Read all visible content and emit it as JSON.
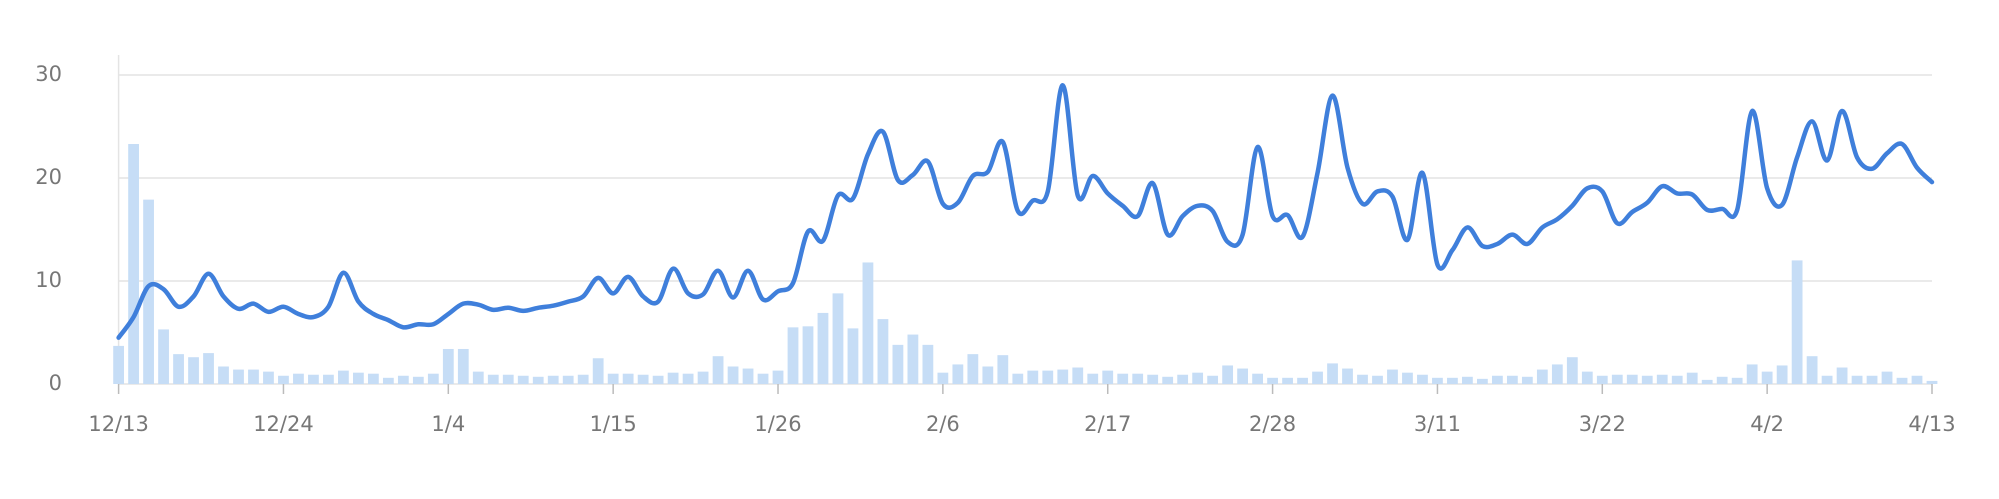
{
  "chart_data": {
    "type": "combo",
    "categories": [
      "12/13",
      null,
      null,
      null,
      null,
      null,
      null,
      null,
      null,
      null,
      null,
      "12/24",
      null,
      null,
      null,
      null,
      null,
      null,
      null,
      null,
      null,
      null,
      "1/4",
      null,
      null,
      null,
      null,
      null,
      null,
      null,
      null,
      null,
      null,
      "1/15",
      null,
      null,
      null,
      null,
      null,
      null,
      null,
      null,
      null,
      null,
      "1/26",
      null,
      null,
      null,
      null,
      null,
      null,
      null,
      null,
      null,
      null,
      "2/6",
      null,
      null,
      null,
      null,
      null,
      null,
      null,
      null,
      null,
      null,
      "2/17",
      null,
      null,
      null,
      null,
      null,
      null,
      null,
      null,
      null,
      null,
      "2/28",
      null,
      null,
      null,
      null,
      null,
      null,
      null,
      null,
      null,
      null,
      "3/11",
      null,
      null,
      null,
      null,
      null,
      null,
      null,
      null,
      null,
      null,
      "3/22",
      null,
      null,
      null,
      null,
      null,
      null,
      null,
      null,
      null,
      null,
      "4/2",
      null,
      null,
      null,
      null,
      null,
      null,
      null,
      null,
      null,
      null,
      "4/13"
    ],
    "series": [
      {
        "type": "bar",
        "color": "#c6ddf6",
        "values": [
          3.7,
          23.3,
          17.9,
          5.3,
          2.9,
          2.6,
          3,
          1.7,
          1.4,
          1.4,
          1.2,
          0.8,
          1,
          0.9,
          0.9,
          1.3,
          1.1,
          1,
          0.6,
          0.8,
          0.7,
          1,
          3.4,
          3.4,
          1.2,
          0.9,
          0.9,
          0.8,
          0.7,
          0.8,
          0.8,
          0.9,
          2.5,
          1,
          1,
          0.9,
          0.8,
          1.1,
          1,
          1.2,
          2.7,
          1.7,
          1.5,
          1,
          1.3,
          5.5,
          5.6,
          6.9,
          8.8,
          5.4,
          11.8,
          6.3,
          3.8,
          4.8,
          3.8,
          1.1,
          1.9,
          2.9,
          1.7,
          2.8,
          1,
          1.3,
          1.3,
          1.4,
          1.6,
          1,
          1.3,
          1,
          1,
          0.9,
          0.7,
          0.9,
          1.1,
          0.8,
          1.8,
          1.5,
          1,
          0.6,
          0.6,
          0.6,
          1.2,
          2,
          1.5,
          0.9,
          0.8,
          1.4,
          1.1,
          0.9,
          0.6,
          0.6,
          0.7,
          0.5,
          0.8,
          0.8,
          0.7,
          1.4,
          1.9,
          2.6,
          1.2,
          0.8,
          0.9,
          0.9,
          0.8,
          0.9,
          0.8,
          1.1,
          0.4,
          0.7,
          0.6,
          1.9,
          1.2,
          1.8,
          12,
          2.7,
          0.8,
          1.6,
          0.8,
          0.8,
          1.2,
          0.6,
          0.8,
          0.3
        ]
      },
      {
        "type": "line",
        "color": "#3f7fdb",
        "values": [
          4.5,
          6.5,
          9.5,
          9.2,
          7.5,
          8.5,
          10.7,
          8.5,
          7.3,
          7.8,
          7,
          7.5,
          6.8,
          6.5,
          7.5,
          10.8,
          8,
          6.8,
          6.2,
          5.5,
          5.8,
          5.8,
          6.8,
          7.8,
          7.7,
          7.2,
          7.4,
          7.1,
          7.4,
          7.6,
          8,
          8.5,
          10.3,
          8.8,
          10.4,
          8.5,
          8,
          11.2,
          8.8,
          8.7,
          11,
          8.4,
          11,
          8.2,
          9,
          9.8,
          14.8,
          13.9,
          18.3,
          18,
          22.3,
          24.5,
          19.8,
          20.3,
          21.6,
          17.5,
          17.6,
          20.2,
          20.6,
          23.5,
          16.8,
          17.8,
          18.7,
          29,
          18.3,
          20.2,
          18.5,
          17.3,
          16.3,
          19.5,
          14.5,
          16.3,
          17.3,
          16.8,
          13.8,
          14.5,
          23,
          16.3,
          16.4,
          14.3,
          20.5,
          28,
          21,
          17.5,
          18.7,
          18.2,
          14,
          20.5,
          11.6,
          13,
          15.2,
          13.4,
          13.6,
          14.5,
          13.6,
          15.2,
          16,
          17.3,
          19,
          18.7,
          15.6,
          16.7,
          17.6,
          19.2,
          18.5,
          18.4,
          16.9,
          17,
          16.9,
          26.5,
          19,
          17.4,
          22,
          25.5,
          21.7,
          26.5,
          22,
          20.9,
          22.4,
          23.3,
          21,
          19.6
        ]
      }
    ],
    "ylim": [
      0,
      31.5
    ],
    "yticks": [
      0,
      10,
      20,
      30
    ],
    "grid": true
  }
}
